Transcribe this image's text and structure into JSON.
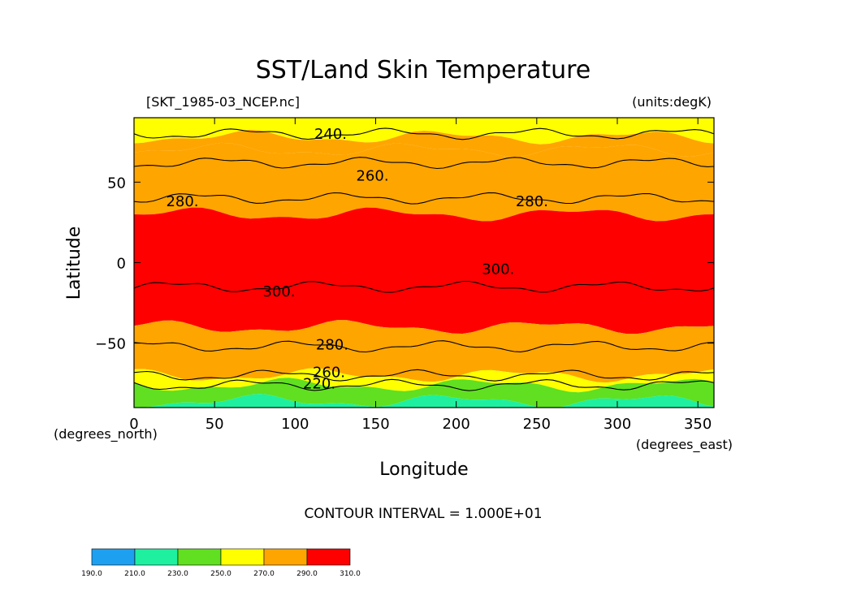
{
  "chart_data": {
    "type": "heatmap",
    "title": "SST/Land Skin Temperature",
    "file_label": "[SKT_1985-03_NCEP.nc]",
    "units_label": "(units:degK)",
    "xlabel": "Longitude",
    "ylabel": "Latitude",
    "x_unit_label": "(degrees_east)",
    "y_unit_label": "(degrees_north)",
    "xlim": [
      0,
      360
    ],
    "ylim": [
      -90,
      90
    ],
    "x_ticks": [
      0,
      50,
      100,
      150,
      200,
      250,
      300,
      350
    ],
    "y_ticks": [
      -50,
      0,
      50
    ],
    "contour_interval_text": "CONTOUR INTERVAL = 1.000E+01",
    "colorbar": {
      "levels": [
        "190.0",
        "210.0",
        "230.0",
        "250.0",
        "270.0",
        "290.0",
        "310.0"
      ],
      "colors": [
        "#1ea0f0",
        "#1ef0a0",
        "#60e020",
        "#ffff00",
        "#ffa500",
        "#ff0000"
      ]
    },
    "contour_labels": [
      {
        "text": "240.",
        "lon": 122,
        "lat": 80
      },
      {
        "text": "260.",
        "lon": 148,
        "lat": 54
      },
      {
        "text": "280.",
        "lon": 30,
        "lat": 38
      },
      {
        "text": "280.",
        "lon": 247,
        "lat": 38
      },
      {
        "text": "300.",
        "lon": 226,
        "lat": -4
      },
      {
        "text": "300.",
        "lon": 90,
        "lat": -18
      },
      {
        "text": "280.",
        "lon": 123,
        "lat": -51
      },
      {
        "text": "260.",
        "lon": 121,
        "lat": -68
      },
      {
        "text": "220.",
        "lon": 115,
        "lat": -75
      }
    ],
    "bands": [
      {
        "value": 250,
        "north": 90,
        "south": 78
      },
      {
        "value": 270,
        "north": 78,
        "south": 70
      },
      {
        "value": 280,
        "north": 70,
        "south": 30
      },
      {
        "value": 300,
        "north": 30,
        "south": -40
      },
      {
        "value": 280,
        "north": -40,
        "south": -70
      },
      {
        "value": 260,
        "north": -70,
        "south": -76
      },
      {
        "value": 240,
        "north": -76,
        "south": -86
      },
      {
        "value": 220,
        "north": -86,
        "south": -90
      }
    ],
    "contour_lines": [
      {
        "value": 240,
        "lat": 80
      },
      {
        "value": 260,
        "lat": 62
      },
      {
        "value": 280,
        "lat": 40
      },
      {
        "value": 300,
        "lat": -15
      },
      {
        "value": 280,
        "lat": -52
      },
      {
        "value": 260,
        "lat": -70
      },
      {
        "value": 240,
        "lat": -76
      }
    ]
  }
}
